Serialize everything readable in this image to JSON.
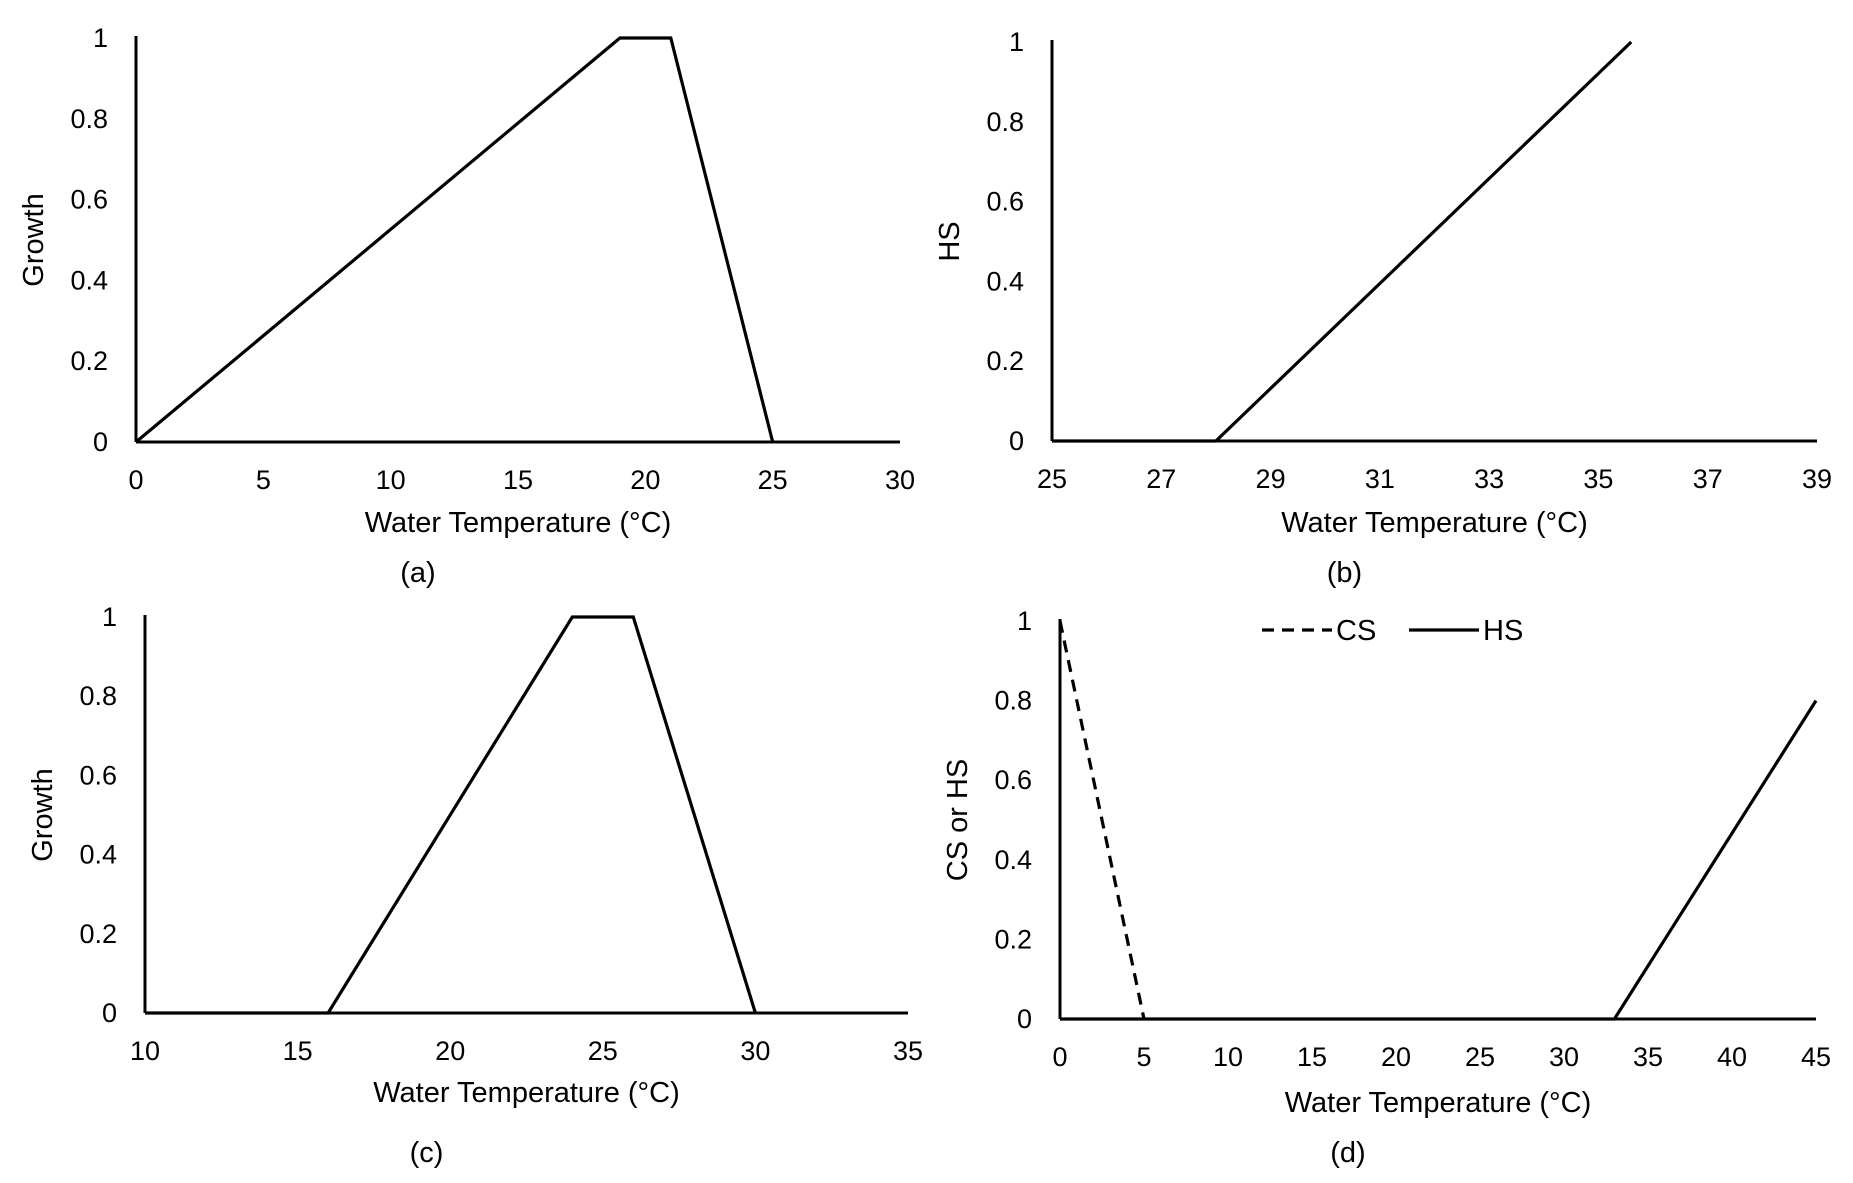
{
  "chart_data": [
    {
      "type": "line",
      "panel": "(a)",
      "xlabel": "Water Temperature (°C)",
      "ylabel": "Growth",
      "xlim": [
        0,
        30
      ],
      "ylim": [
        0,
        1
      ],
      "xticks": [
        0,
        5,
        10,
        15,
        20,
        25,
        30
      ],
      "yticks": [
        0,
        0.2,
        0.4,
        0.6,
        0.8,
        1
      ],
      "xtick_labels": [
        "0",
        "5",
        "10",
        "15",
        "20",
        "25",
        "30"
      ],
      "ytick_labels": [
        "0",
        "0.2",
        "0.4",
        "0.6",
        "0.8",
        "1"
      ],
      "series": [
        {
          "name": "Growth",
          "style": "solid",
          "x": [
            0,
            19,
            21,
            25
          ],
          "y": [
            0,
            1,
            1,
            0
          ]
        }
      ]
    },
    {
      "type": "line",
      "panel": "(b)",
      "xlabel": "Water Temperature (°C)",
      "ylabel": "HS",
      "xlim": [
        25,
        39
      ],
      "ylim": [
        0,
        1
      ],
      "xticks": [
        25,
        27,
        29,
        31,
        33,
        35,
        37,
        39
      ],
      "yticks": [
        0,
        0.2,
        0.4,
        0.6,
        0.8,
        1
      ],
      "xtick_labels": [
        "25",
        "27",
        "29",
        "31",
        "33",
        "35",
        "37",
        "39"
      ],
      "ytick_labels": [
        "0",
        "0.2",
        "0.4",
        "0.6",
        "0.8",
        "1"
      ],
      "series": [
        {
          "name": "HS",
          "style": "solid",
          "x": [
            25,
            28,
            35.6
          ],
          "y": [
            0,
            0,
            1
          ]
        }
      ]
    },
    {
      "type": "line",
      "panel": "(c)",
      "xlabel": "Water Temperature (°C)",
      "ylabel": "Growth",
      "xlim": [
        10,
        35
      ],
      "ylim": [
        0,
        1
      ],
      "xticks": [
        10,
        15,
        20,
        25,
        30,
        35
      ],
      "yticks": [
        0,
        0.2,
        0.4,
        0.6,
        0.8,
        1
      ],
      "xtick_labels": [
        "10",
        "15",
        "20",
        "25",
        "30",
        "35"
      ],
      "ytick_labels": [
        "0",
        "0.2",
        "0.4",
        "0.6",
        "0.8",
        "1"
      ],
      "series": [
        {
          "name": "Growth",
          "style": "solid",
          "x": [
            10,
            16,
            24,
            26,
            30
          ],
          "y": [
            0,
            0,
            1,
            1,
            0
          ]
        }
      ]
    },
    {
      "type": "line",
      "panel": "(d)",
      "xlabel": "Water Temperature (°C)",
      "ylabel": "CS or HS",
      "xlim": [
        0,
        45
      ],
      "ylim": [
        0,
        1
      ],
      "xticks": [
        0,
        5,
        10,
        15,
        20,
        25,
        30,
        35,
        40,
        45
      ],
      "yticks": [
        0,
        0.2,
        0.4,
        0.6,
        0.8,
        1
      ],
      "xtick_labels": [
        "0",
        "5",
        "10",
        "15",
        "20",
        "25",
        "30",
        "35",
        "40",
        "45"
      ],
      "ytick_labels": [
        "0",
        "0.2",
        "0.4",
        "0.6",
        "0.8",
        "1"
      ],
      "legend_position": "top-center",
      "series": [
        {
          "name": "CS",
          "style": "dashed",
          "x": [
            0,
            5
          ],
          "y": [
            1,
            0
          ]
        },
        {
          "name": "HS",
          "style": "solid",
          "x": [
            0,
            33,
            45
          ],
          "y": [
            0,
            0,
            0.8
          ]
        }
      ]
    }
  ]
}
